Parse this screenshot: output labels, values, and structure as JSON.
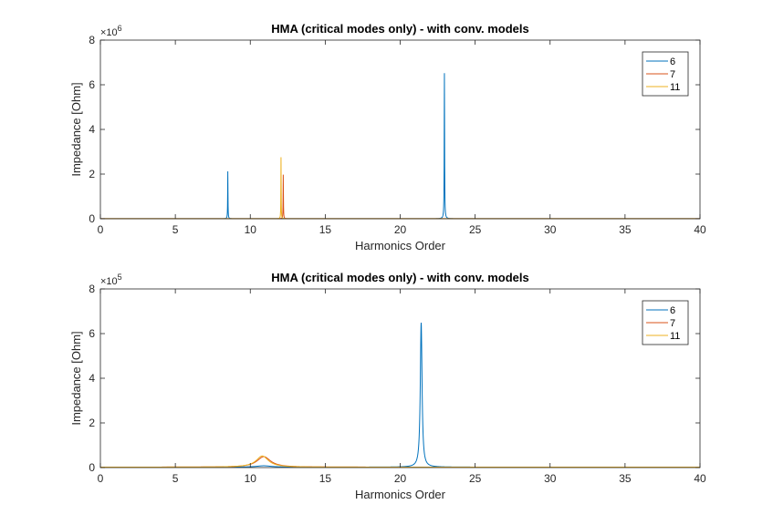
{
  "colors": {
    "axis": "#262626",
    "series": [
      "#0072BD",
      "#D95319",
      "#EDB120"
    ]
  },
  "chart_data": [
    {
      "type": "line",
      "title": "HMA (critical modes only) - with conv. models",
      "xlabel": "Harmonics Order",
      "ylabel": "Impedance [Ohm]",
      "y_multiplier_base": "×10",
      "y_multiplier_exp": "6",
      "xlim": [
        0,
        40
      ],
      "ylim": [
        0,
        8
      ],
      "xticks": [
        0,
        5,
        10,
        15,
        20,
        25,
        30,
        35,
        40
      ],
      "yticks": [
        0,
        2,
        4,
        6,
        8
      ],
      "grid": false,
      "legend_position": "top-right",
      "baseline": 0.003,
      "series": [
        {
          "name": "6",
          "peaks": [
            {
              "x": 8.5,
              "y": 2.12,
              "w": 0.012
            },
            {
              "x": 22.95,
              "y": 6.52,
              "w": 0.015
            }
          ]
        },
        {
          "name": "7",
          "peaks": [
            {
              "x": 12.2,
              "y": 1.97,
              "w": 0.012
            }
          ]
        },
        {
          "name": "11",
          "peaks": [
            {
              "x": 12.05,
              "y": 2.75,
              "w": 0.011
            }
          ]
        }
      ]
    },
    {
      "type": "line",
      "title": "HMA (critical modes only) - with conv. models",
      "xlabel": "Harmonics Order",
      "ylabel": "Impedance [Ohm]",
      "y_multiplier_base": "×10",
      "y_multiplier_exp": "5",
      "xlim": [
        0,
        40
      ],
      "ylim": [
        0,
        8
      ],
      "xticks": [
        0,
        5,
        10,
        15,
        20,
        25,
        30,
        35,
        40
      ],
      "yticks": [
        0,
        2,
        4,
        6,
        8
      ],
      "grid": false,
      "legend_position": "top-right",
      "baseline": 0.02,
      "series": [
        {
          "name": "6",
          "peaks": [
            {
              "x": 21.4,
              "y": 6.47,
              "w": 0.07
            },
            {
              "x": 10.9,
              "y": 0.06,
              "w": 0.6
            }
          ]
        },
        {
          "name": "7",
          "peaks": [
            {
              "x": 10.9,
              "y": 0.47,
              "w": 0.55
            }
          ]
        },
        {
          "name": "11",
          "peaks": [
            {
              "x": 10.8,
              "y": 0.5,
              "w": 0.5
            }
          ]
        }
      ]
    }
  ]
}
